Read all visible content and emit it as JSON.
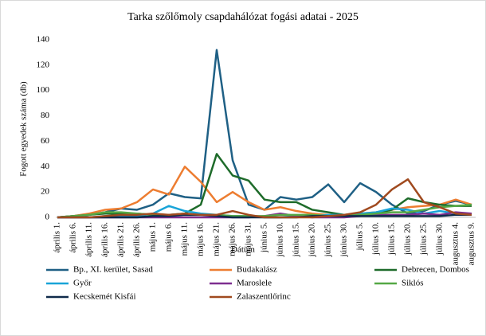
{
  "chart_data": {
    "type": "line",
    "title": "Tarka szőlőmoly csapdahálózat fogási adatai - 2025",
    "x_label": "Dátum",
    "y_label": "Fogott egyedek száma (db)",
    "categories": [
      "április 1.",
      "április 6.",
      "április 11.",
      "április 16.",
      "április 21.",
      "április 26.",
      "május 1.",
      "május 6.",
      "május 11.",
      "május 16.",
      "május 21.",
      "május 26.",
      "május 31.",
      "június 5.",
      "június 10.",
      "június 15.",
      "június 20.",
      "június 25.",
      "június 30.",
      "július 5.",
      "július 10.",
      "július 15.",
      "július 20.",
      "július 25.",
      "július 30.",
      "augusztus 4.",
      "augusztus 9."
    ],
    "ylim": [
      0,
      140
    ],
    "yticks": [
      0,
      20,
      40,
      60,
      80,
      100,
      120,
      140
    ],
    "grid": false,
    "legend": "bottom",
    "series": [
      {
        "name": "Bp., XI. kerület, Sasad",
        "color": "#1f6085",
        "values": [
          0,
          1,
          2,
          4,
          7,
          6,
          10,
          19,
          16,
          15,
          132,
          45,
          10,
          6,
          16,
          14,
          16,
          26,
          12,
          27,
          20,
          10,
          3,
          5,
          10,
          13,
          10
        ]
      },
      {
        "name": "Budakalász",
        "color": "#ed7d31",
        "values": [
          0,
          1,
          3,
          6,
          7,
          12,
          22,
          18,
          40,
          28,
          12,
          20,
          12,
          6,
          8,
          5,
          3,
          2,
          2,
          3,
          4,
          6,
          8,
          9,
          10,
          14,
          10
        ]
      },
      {
        "name": "Debrecen, Dombos",
        "color": "#1e6b2a",
        "values": [
          0,
          1,
          2,
          3,
          3,
          3,
          2,
          2,
          3,
          10,
          50,
          33,
          29,
          14,
          12,
          12,
          6,
          4,
          2,
          2,
          3,
          6,
          15,
          12,
          10,
          9,
          9
        ]
      },
      {
        "name": "Győr",
        "color": "#19a4d8",
        "values": [
          0,
          0,
          0,
          1,
          1,
          1,
          3,
          9,
          5,
          3,
          2,
          1,
          1,
          0,
          0,
          1,
          1,
          2,
          2,
          3,
          4,
          7,
          6,
          3,
          5,
          3,
          2
        ]
      },
      {
        "name": "Maroslele",
        "color": "#7e2e8f",
        "values": [
          0,
          0,
          0,
          0,
          0,
          0,
          0,
          0,
          0,
          0,
          0,
          0,
          0,
          1,
          3,
          1,
          0,
          0,
          0,
          1,
          2,
          2,
          2,
          3,
          2,
          4,
          3
        ]
      },
      {
        "name": "Siklós",
        "color": "#55a845",
        "values": [
          0,
          1,
          2,
          4,
          4,
          3,
          2,
          2,
          2,
          2,
          2,
          1,
          1,
          1,
          2,
          2,
          2,
          1,
          1,
          2,
          3,
          4,
          4,
          6,
          8,
          9,
          10
        ]
      },
      {
        "name": "Kecskemét Kisfái",
        "color": "#0f2a4a",
        "values": [
          0,
          0,
          0,
          0,
          0,
          0,
          1,
          1,
          2,
          2,
          1,
          0,
          0,
          0,
          0,
          0,
          1,
          1,
          1,
          1,
          1,
          1,
          1,
          1,
          1,
          2,
          2
        ]
      },
      {
        "name": "Zalaszentlőrinc",
        "color": "#a04a1f",
        "values": [
          0,
          0,
          0,
          1,
          2,
          2,
          3,
          2,
          3,
          2,
          2,
          5,
          2,
          0,
          0,
          0,
          0,
          1,
          2,
          4,
          10,
          22,
          30,
          12,
          8,
          3,
          2
        ]
      }
    ]
  }
}
